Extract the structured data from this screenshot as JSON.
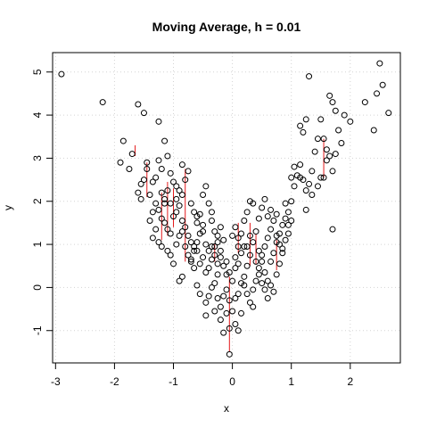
{
  "chart_data": {
    "type": "scatter",
    "title": "Moving Average, h = 0.01",
    "xlabel": "x",
    "ylabel": "y",
    "xlim": [
      -3.05,
      2.85
    ],
    "ylim": [
      -1.75,
      5.45
    ],
    "xticks": [
      -3,
      -2,
      -1,
      0,
      1,
      2
    ],
    "yticks": [
      -1,
      0,
      1,
      2,
      3,
      4,
      5
    ],
    "grid": true,
    "colors": {
      "points": "#000000",
      "segments": "#e41a1c",
      "grid": "#d3d3d3"
    },
    "points": [
      [
        -2.9,
        4.95
      ],
      [
        -2.2,
        4.3
      ],
      [
        -1.6,
        4.25
      ],
      [
        -1.5,
        4.05
      ],
      [
        -1.85,
        3.4
      ],
      [
        -1.7,
        3.1
      ],
      [
        -1.75,
        2.75
      ],
      [
        -1.9,
        2.9
      ],
      [
        -1.55,
        2.4
      ],
      [
        -1.45,
        2.9
      ],
      [
        -1.6,
        2.2
      ],
      [
        -1.4,
        2.15
      ],
      [
        -1.3,
        2.55
      ],
      [
        -1.2,
        2.75
      ],
      [
        -1.15,
        3.4
      ],
      [
        -1.1,
        3.05
      ],
      [
        -1.05,
        2.65
      ],
      [
        -1.25,
        3.85
      ],
      [
        -1.0,
        2.45
      ],
      [
        -0.95,
        2.35
      ],
      [
        -0.9,
        2.25
      ],
      [
        -0.85,
        2.85
      ],
      [
        -0.8,
        2.5
      ],
      [
        -0.75,
        2.7
      ],
      [
        -1.3,
        1.95
      ],
      [
        -1.25,
        1.8
      ],
      [
        -1.2,
        1.6
      ],
      [
        -1.15,
        1.5
      ],
      [
        -1.1,
        1.35
      ],
      [
        -1.05,
        1.25
      ],
      [
        -1.0,
        1.65
      ],
      [
        -0.95,
        1.75
      ],
      [
        -0.9,
        1.9
      ],
      [
        -0.85,
        1.55
      ],
      [
        -0.8,
        1.4
      ],
      [
        -0.75,
        1.2
      ],
      [
        -0.7,
        1.05
      ],
      [
        -0.65,
        0.95
      ],
      [
        -0.6,
        1.65
      ],
      [
        -0.55,
        1.7
      ],
      [
        -0.5,
        2.15
      ],
      [
        -0.45,
        2.35
      ],
      [
        -0.4,
        1.95
      ],
      [
        -0.35,
        1.55
      ],
      [
        -0.3,
        1.3
      ],
      [
        -0.25,
        1.2
      ],
      [
        -0.6,
        0.85
      ],
      [
        -0.55,
        0.55
      ],
      [
        -0.5,
        0.7
      ],
      [
        -0.45,
        0.35
      ],
      [
        -0.4,
        0.45
      ],
      [
        -0.35,
        0.95
      ],
      [
        -0.3,
        0.75
      ],
      [
        -0.25,
        0.55
      ],
      [
        -0.2,
        0.85
      ],
      [
        -0.15,
        1.1
      ],
      [
        -0.1,
        0.6
      ],
      [
        -0.05,
        0.35
      ],
      [
        0.0,
        0.15
      ],
      [
        0.05,
        0.45
      ],
      [
        -0.9,
        0.15
      ],
      [
        -0.85,
        0.25
      ],
      [
        -0.7,
        0.6
      ],
      [
        -0.65,
        0.45
      ],
      [
        -0.45,
        -0.65
      ],
      [
        -0.3,
        -0.55
      ],
      [
        -0.25,
        -0.25
      ],
      [
        -0.2,
        -0.45
      ],
      [
        -0.15,
        -0.2
      ],
      [
        -0.1,
        -0.05
      ],
      [
        -0.05,
        -0.3
      ],
      [
        0.0,
        -0.55
      ],
      [
        -0.15,
        -1.05
      ],
      [
        -0.05,
        -1.55
      ],
      [
        0.05,
        -0.85
      ],
      [
        0.1,
        -0.15
      ],
      [
        0.15,
        0.1
      ],
      [
        0.2,
        0.25
      ],
      [
        0.25,
        0.5
      ],
      [
        0.3,
        0.75
      ],
      [
        0.35,
        1.05
      ],
      [
        0.4,
        1.3
      ],
      [
        0.45,
        0.85
      ],
      [
        0.5,
        0.6
      ],
      [
        0.55,
        0.35
      ],
      [
        0.6,
        0.15
      ],
      [
        0.65,
        0.05
      ],
      [
        0.7,
        -0.1
      ],
      [
        0.75,
        0.3
      ],
      [
        0.8,
        0.55
      ],
      [
        0.85,
        0.9
      ],
      [
        0.9,
        1.1
      ],
      [
        0.95,
        1.45
      ],
      [
        1.0,
        1.55
      ],
      [
        0.6,
        1.65
      ],
      [
        0.65,
        1.8
      ],
      [
        0.55,
        2.05
      ],
      [
        0.5,
        1.85
      ],
      [
        0.45,
        1.6
      ],
      [
        0.35,
        1.95
      ],
      [
        0.3,
        2.0
      ],
      [
        0.25,
        1.75
      ],
      [
        0.2,
        1.55
      ],
      [
        0.15,
        1.25
      ],
      [
        0.1,
        0.95
      ],
      [
        0.75,
        1.2
      ],
      [
        0.8,
        1.0
      ],
      [
        0.85,
        0.8
      ],
      [
        0.9,
        1.6
      ],
      [
        0.95,
        1.75
      ],
      [
        1.0,
        2.0
      ],
      [
        1.05,
        2.35
      ],
      [
        1.1,
        2.6
      ],
      [
        1.15,
        2.85
      ],
      [
        1.2,
        2.5
      ],
      [
        1.25,
        2.25
      ],
      [
        1.3,
        2.4
      ],
      [
        1.35,
        2.7
      ],
      [
        1.4,
        3.15
      ],
      [
        1.45,
        3.45
      ],
      [
        1.5,
        3.9
      ],
      [
        1.55,
        2.55
      ],
      [
        1.6,
        2.95
      ],
      [
        1.65,
        3.05
      ],
      [
        1.7,
        2.7
      ],
      [
        1.75,
        3.1
      ],
      [
        1.8,
        3.65
      ],
      [
        1.85,
        3.35
      ],
      [
        1.9,
        4.0
      ],
      [
        1.65,
        4.45
      ],
      [
        1.7,
        4.3
      ],
      [
        1.75,
        4.1
      ],
      [
        1.3,
        4.9
      ],
      [
        1.25,
        3.9
      ],
      [
        1.2,
        3.6
      ],
      [
        1.15,
        3.75
      ],
      [
        1.55,
        3.45
      ],
      [
        1.6,
        3.2
      ],
      [
        1.7,
        1.35
      ],
      [
        1.5,
        2.55
      ],
      [
        1.45,
        2.35
      ],
      [
        1.35,
        2.15
      ],
      [
        1.25,
        1.8
      ],
      [
        2.0,
        3.85
      ],
      [
        2.25,
        4.3
      ],
      [
        2.4,
        3.65
      ],
      [
        2.45,
        4.5
      ],
      [
        2.5,
        5.2
      ],
      [
        2.55,
        4.7
      ],
      [
        2.65,
        4.05
      ],
      [
        0.2,
        0.05
      ],
      [
        0.25,
        -0.15
      ],
      [
        0.3,
        -0.35
      ],
      [
        0.35,
        -0.45
      ],
      [
        0.15,
        -0.6
      ],
      [
        0.1,
        -1.0
      ],
      [
        -0.05,
        -0.95
      ],
      [
        0.25,
        0.95
      ],
      [
        0.3,
        1.2
      ],
      [
        0.4,
        0.6
      ],
      [
        0.45,
        0.3
      ],
      [
        0.5,
        0.1
      ],
      [
        0.55,
        -0.05
      ],
      [
        0.6,
        -0.25
      ],
      [
        0.65,
        0.6
      ],
      [
        0.7,
        0.8
      ],
      [
        0.75,
        1.05
      ],
      [
        0.8,
        1.25
      ],
      [
        0.85,
        1.45
      ],
      [
        0.9,
        1.95
      ],
      [
        -1.35,
        1.15
      ],
      [
        -1.3,
        1.35
      ],
      [
        -1.25,
        1.05
      ],
      [
        -1.2,
        0.95
      ],
      [
        -1.1,
        0.85
      ],
      [
        -1.05,
        0.75
      ],
      [
        -1.0,
        0.55
      ],
      [
        -0.95,
        1.0
      ],
      [
        -0.9,
        1.2
      ],
      [
        -0.85,
        1.3
      ],
      [
        -0.8,
        0.95
      ],
      [
        -0.75,
        0.75
      ],
      [
        -0.7,
        0.65
      ],
      [
        -0.65,
        0.85
      ],
      [
        -0.6,
        1.05
      ],
      [
        -0.55,
        1.25
      ],
      [
        -0.5,
        1.45
      ],
      [
        -0.45,
        1.0
      ],
      [
        -0.4,
        0.85
      ],
      [
        -0.35,
        0.65
      ],
      [
        -0.3,
        0.95
      ],
      [
        -0.25,
        1.05
      ],
      [
        -0.2,
        0.7
      ],
      [
        -0.15,
        0.5
      ],
      [
        -0.1,
        0.3
      ],
      [
        0.0,
        1.2
      ],
      [
        0.05,
        1.4
      ],
      [
        0.1,
        1.15
      ],
      [
        -1.4,
        1.55
      ],
      [
        -1.35,
        1.75
      ],
      [
        -1.15,
        2.05
      ],
      [
        -1.1,
        2.25
      ],
      [
        -1.05,
        1.95
      ],
      [
        -0.95,
        2.05
      ],
      [
        -0.85,
        2.15
      ],
      [
        -0.7,
        1.95
      ],
      [
        -0.65,
        1.75
      ],
      [
        -0.6,
        1.5
      ],
      [
        -0.5,
        1.3
      ],
      [
        -0.35,
        1.75
      ],
      [
        -0.2,
        1.4
      ],
      [
        0.95,
        1.25
      ],
      [
        1.0,
        2.55
      ],
      [
        1.05,
        2.8
      ],
      [
        1.15,
        2.55
      ],
      [
        -1.5,
        2.5
      ],
      [
        -1.55,
        2.05
      ],
      [
        -1.45,
        2.75
      ],
      [
        -1.35,
        2.45
      ],
      [
        -1.25,
        2.95
      ],
      [
        -1.2,
        2.2
      ],
      [
        -1.15,
        1.95
      ],
      [
        0.35,
        -0.05
      ],
      [
        0.4,
        0.15
      ],
      [
        0.45,
        0.45
      ],
      [
        0.5,
        0.75
      ],
      [
        0.55,
        0.95
      ],
      [
        0.6,
        1.15
      ],
      [
        0.65,
        1.35
      ],
      [
        0.7,
        1.55
      ],
      [
        0.75,
        1.7
      ],
      [
        -0.25,
        0.3
      ],
      [
        -0.3,
        0.1
      ],
      [
        -0.35,
        0.0
      ],
      [
        -0.4,
        -0.2
      ],
      [
        -0.45,
        -0.35
      ],
      [
        -0.55,
        -0.15
      ],
      [
        -0.6,
        0.05
      ],
      [
        0.05,
        0.7
      ],
      [
        0.1,
        0.55
      ],
      [
        0.15,
        0.8
      ],
      [
        0.2,
        0.95
      ],
      [
        -0.1,
        -0.6
      ],
      [
        -0.2,
        -0.75
      ],
      [
        0.05,
        -0.25
      ]
    ],
    "segments": [
      [
        -1.65,
        3.3,
        3.05
      ],
      [
        -1.45,
        2.9,
        2.1
      ],
      [
        -1.2,
        2.2,
        1.1
      ],
      [
        -1.1,
        2.45,
        1.2
      ],
      [
        -1.0,
        2.3,
        1.4
      ],
      [
        -0.8,
        2.75,
        0.6
      ],
      [
        -0.3,
        1.0,
        0.6
      ],
      [
        -0.05,
        0.25,
        -1.5
      ],
      [
        0.1,
        1.5,
        0.8
      ],
      [
        0.3,
        1.5,
        0.5
      ],
      [
        0.4,
        1.25,
        0.55
      ],
      [
        0.75,
        1.1,
        0.4
      ],
      [
        1.55,
        3.45,
        2.55
      ]
    ]
  }
}
